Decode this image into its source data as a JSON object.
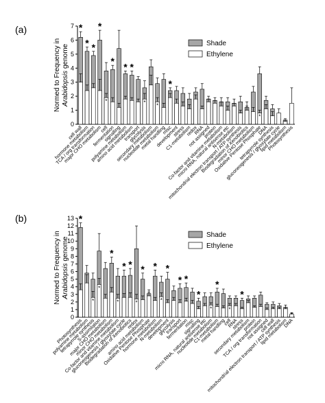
{
  "chart_data": [
    {
      "type": "bar",
      "panel_label": "(a)",
      "ylabel_main": "Normed to Frequency in",
      "ylabel_species": "Arabidopsis",
      "ylabel_tail": "genome",
      "ylim": [
        0,
        7
      ],
      "yticks": [
        0,
        1,
        2,
        3,
        4,
        5,
        6,
        7
      ],
      "legend": [
        {
          "name": "Shade",
          "color": "#a6a6a6"
        },
        {
          "name": "Ethylene",
          "color": "#ffffff"
        }
      ],
      "categories": [
        "cell wall",
        "hormone metabolism",
        "TCA / org transformation",
        "major CHO metabolism",
        "cell",
        "fermentation",
        "signalling",
        "polyamine metabolism",
        "amino acid metabolism",
        "transport",
        "glycolysis",
        "secondary metabolism",
        "nucleotide metabolism",
        "metal handling",
        "misc",
        "development",
        "stress",
        "C1-metabolism",
        "redox",
        "RNA",
        "not assigned",
        "protein",
        "Co-factor and vitamine metabolism",
        "micro RNA, natural antisense etc",
        "N-metabolism",
        "mitochondrial electron transport / ATP synthesis",
        "Biodegradation of Xenobiotics",
        "minor CHO metabolism",
        "Oxidative Pentose Phosphate",
        "DNA",
        "tetrapyrrole synthesis",
        "gluconeogenesis / glyoxylate cycle",
        "lipid metabolism",
        "Photosynthesis"
      ],
      "series": [
        {
          "name": "Shade",
          "values": [
            6.2,
            5.2,
            4.9,
            6.0,
            3.8,
            3.9,
            5.4,
            3.6,
            3.5,
            3.2,
            2.6,
            4.1,
            2.9,
            3.2,
            2.4,
            2.4,
            2.2,
            1.8,
            2.3,
            2.5,
            1.8,
            1.7,
            1.6,
            1.6,
            1.5,
            1.6,
            1.2,
            2.3,
            3.6,
            1.7,
            1.1,
            0.4,
            0.3,
            0.0
          ],
          "errors": [
            0.4,
            0.3,
            0.3,
            0.7,
            0.6,
            0.3,
            1.3,
            0.2,
            0.3,
            0.2,
            0.5,
            0.5,
            0.4,
            0.4,
            0.2,
            0.3,
            0.4,
            0.4,
            0.3,
            0.4,
            0.2,
            0.2,
            0.3,
            0.3,
            0.3,
            0.4,
            0.4,
            0.4,
            0.5,
            0.3,
            0.3,
            0.1,
            0.1,
            0.0
          ]
        },
        {
          "name": "Ethylene",
          "values": [
            3.0,
            2.4,
            2.6,
            2.4,
            1.9,
            1.6,
            1.2,
            1.8,
            1.7,
            1.6,
            1.8,
            2.8,
            1.6,
            1.2,
            1.9,
            1.5,
            1.3,
            1.1,
            1.8,
            1.1,
            1.6,
            1.5,
            1.3,
            1.0,
            1.3,
            0.8,
            1.0,
            0.9,
            0.8,
            1.1,
            0.6,
            0.8,
            0.2,
            1.5
          ],
          "errors": [
            0.6,
            0.4,
            0.3,
            0.8,
            0.3,
            0.3,
            0.3,
            0.2,
            0.2,
            0.2,
            0.4,
            0.7,
            0.3,
            0.3,
            0.3,
            0.3,
            0.3,
            0.3,
            0.3,
            0.2,
            0.2,
            0.2,
            0.3,
            0.3,
            0.2,
            0.2,
            0.3,
            0.3,
            0.2,
            0.3,
            0.3,
            0.3,
            0.1,
            1.1
          ]
        }
      ],
      "star_top": [
        0,
        1,
        2,
        3,
        5,
        7,
        8,
        14
      ],
      "star_inner": [
        4,
        10,
        12,
        28
      ]
    },
    {
      "type": "bar",
      "panel_label": "(b)",
      "ylabel_main": "Normed to Frequency in",
      "ylabel_species": "Arabidopsis",
      "ylabel_tail": "genome",
      "ylim": [
        0,
        13
      ],
      "yticks": [
        0,
        1,
        2,
        3,
        4,
        5,
        6,
        7,
        8,
        9,
        10,
        11,
        12,
        13
      ],
      "legend": [
        {
          "name": "Shade",
          "color": "#a6a6a6"
        },
        {
          "name": "Ethylene",
          "color": "#ffffff"
        }
      ],
      "categories": [
        "Photosynthesis",
        "polyamine metabolism",
        "tetrapyrrole synthesis",
        "S-assimilation",
        "major CHO metabolism",
        "minor CHO metabolism",
        "Co-factor and vitamine metabolism",
        "gluconeogenesis / glyoxylate cycle",
        "Biodegradation of Xenobiotics",
        "redox",
        "amino acid metabolism",
        "Oxidative Pentose Phosphate",
        "hormone metabolism",
        "N-metabolism",
        "development",
        "glycolysis",
        "transport",
        "fermentation",
        "misc",
        "signalling",
        "micro RNA, natural antisense etc",
        "nucleotide metabolism",
        "C1-metabolism",
        "metal handling",
        "cell",
        "RNA",
        "stress",
        "secondary metabolism",
        "protein",
        "TCA / org transformation",
        "not assigned",
        "cell wall",
        "mitochondrial electron transport / ATP synthesis",
        "lipid metabolism",
        "DNA"
      ],
      "series": [
        {
          "name": "Shade",
          "values": [
            11.8,
            5.8,
            5.0,
            8.7,
            6.4,
            7.1,
            5.4,
            5.4,
            5.5,
            9.0,
            5.0,
            3.1,
            5.4,
            4.6,
            5.0,
            3.5,
            3.8,
            3.9,
            3.3,
            2.1,
            2.7,
            2.7,
            3.3,
            3.1,
            2.5,
            2.5,
            2.2,
            2.4,
            2.5,
            2.9,
            1.7,
            1.7,
            1.5,
            1.3,
            0.3
          ],
          "errors": [
            0.6,
            1.0,
            0.8,
            2.3,
            0.8,
            0.8,
            1.0,
            0.8,
            0.9,
            3.0,
            0.8,
            0.5,
            0.8,
            0.8,
            0.9,
            0.6,
            0.6,
            0.6,
            0.5,
            0.4,
            0.5,
            0.5,
            0.5,
            0.6,
            0.3,
            0.3,
            0.3,
            0.4,
            0.3,
            0.4,
            0.2,
            0.3,
            0.3,
            0.3,
            0.2
          ]
        },
        {
          "name": "Ethylene",
          "values": [
            3.6,
            4.5,
            2.6,
            4.3,
            2.5,
            3.3,
            2.5,
            2.6,
            2.6,
            2.4,
            2.3,
            2.8,
            2.2,
            2.7,
            1.9,
            2.2,
            1.9,
            2.1,
            1.8,
            1.1,
            1.5,
            1.6,
            1.4,
            1.2,
            1.5,
            1.5,
            1.1,
            1.9,
            1.3,
            1.4,
            1.0,
            1.1,
            1.1,
            1.1,
            0.4
          ],
          "errors": [
            0.8,
            1.1,
            0.8,
            0.8,
            0.5,
            0.6,
            0.5,
            0.5,
            0.6,
            0.6,
            0.5,
            0.5,
            0.4,
            0.5,
            0.4,
            0.4,
            0.4,
            0.4,
            0.4,
            0.3,
            0.3,
            0.3,
            0.3,
            0.3,
            0.3,
            0.3,
            0.2,
            0.3,
            0.2,
            0.3,
            0.2,
            0.2,
            0.2,
            0.2,
            0.2
          ]
        }
      ],
      "star_top": [
        0,
        5,
        7,
        8,
        10,
        12,
        14,
        16,
        17,
        19,
        22,
        26
      ],
      "star_inner": [
        3,
        6,
        9,
        2,
        13,
        21,
        24
      ]
    }
  ]
}
